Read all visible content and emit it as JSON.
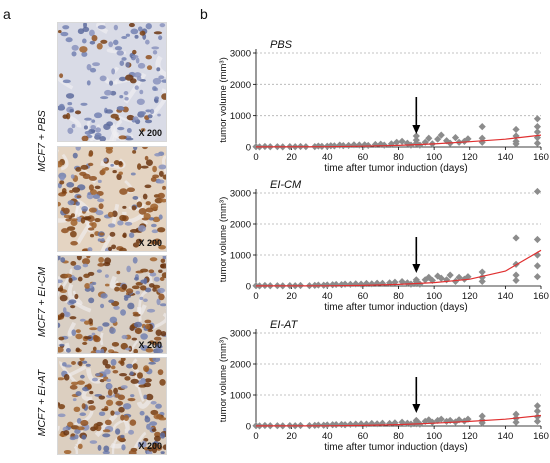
{
  "panel_a": {
    "letter": "a",
    "rows": [
      {
        "label": "MCF7 + PBS",
        "images": [
          {
            "magnification": "X 200",
            "stain": "pbs-top"
          },
          {
            "magnification": "X 200",
            "stain": "pbs-bottom"
          }
        ]
      },
      {
        "label": "MCF7 + EI-CM",
        "images": [
          {
            "magnification": "X 200",
            "stain": "eicm"
          }
        ]
      },
      {
        "label": "MCF7 + EI-AT",
        "images": [
          {
            "magnification": "X 200",
            "stain": "eiat"
          }
        ]
      }
    ]
  },
  "panel_b": {
    "letter": "b"
  },
  "colors": {
    "points": "#8c8c8c",
    "trend": "#e03030",
    "grid": "#b0b0b0",
    "arrow": "#000000",
    "nuclei_brown": "#8a4a1a",
    "nuclei_blue": "#6a78a8"
  },
  "chart_data": [
    {
      "type": "scatter",
      "title": "PBS",
      "xlabel": "time after tumor induction  (days)",
      "ylabel": "tumor volume  (mm³)",
      "xlim": [
        0,
        160
      ],
      "ylim": [
        0,
        3000
      ],
      "xticks": [
        0,
        20,
        40,
        60,
        80,
        100,
        120,
        140,
        160
      ],
      "yticks": [
        0,
        1000,
        2000,
        3000
      ],
      "grid": "horizontal dashed",
      "arrow_at_x": 90,
      "points": [
        [
          0,
          10
        ],
        [
          2,
          5
        ],
        [
          5,
          15
        ],
        [
          8,
          8
        ],
        [
          12,
          10
        ],
        [
          15,
          5
        ],
        [
          19,
          12
        ],
        [
          22,
          8
        ],
        [
          25,
          15
        ],
        [
          28,
          10
        ],
        [
          33,
          12
        ],
        [
          35,
          30
        ],
        [
          37,
          20
        ],
        [
          40,
          25
        ],
        [
          42,
          40
        ],
        [
          44,
          35
        ],
        [
          47,
          60
        ],
        [
          49,
          45
        ],
        [
          52,
          50
        ],
        [
          55,
          70
        ],
        [
          58,
          65
        ],
        [
          61,
          70
        ],
        [
          63,
          50
        ],
        [
          67,
          80
        ],
        [
          70,
          90
        ],
        [
          72,
          60
        ],
        [
          76,
          100
        ],
        [
          79,
          150
        ],
        [
          82,
          180
        ],
        [
          85,
          120
        ],
        [
          87,
          60
        ],
        [
          90,
          350
        ],
        [
          90,
          220
        ],
        [
          90,
          120
        ],
        [
          92,
          60
        ],
        [
          95,
          150
        ],
        [
          97,
          280
        ],
        [
          99,
          100
        ],
        [
          102,
          250
        ],
        [
          104,
          380
        ],
        [
          107,
          200
        ],
        [
          109,
          120
        ],
        [
          112,
          300
        ],
        [
          114,
          150
        ],
        [
          117,
          180
        ],
        [
          119,
          260
        ],
        [
          127,
          650
        ],
        [
          127,
          280
        ],
        [
          127,
          150
        ],
        [
          146,
          560
        ],
        [
          146,
          350
        ],
        [
          146,
          180
        ],
        [
          146,
          100
        ],
        [
          158,
          900
        ],
        [
          158,
          650
        ],
        [
          158,
          480
        ],
        [
          158,
          300
        ],
        [
          158,
          120
        ]
      ],
      "trend": [
        [
          0,
          2
        ],
        [
          40,
          10
        ],
        [
          60,
          25
        ],
        [
          80,
          50
        ],
        [
          100,
          100
        ],
        [
          120,
          170
        ],
        [
          140,
          250
        ],
        [
          160,
          380
        ]
      ]
    },
    {
      "type": "scatter",
      "title": "EI-CM",
      "xlabel": "time after tumor induction  (days)",
      "ylabel": "tumor volume  (mm³)",
      "xlim": [
        0,
        160
      ],
      "ylim": [
        0,
        3000
      ],
      "xticks": [
        0,
        20,
        40,
        60,
        80,
        100,
        120,
        140,
        160
      ],
      "yticks": [
        0,
        1000,
        2000,
        3000
      ],
      "grid": "horizontal dashed",
      "arrow_at_x": 90,
      "points": [
        [
          0,
          10
        ],
        [
          2,
          5
        ],
        [
          5,
          15
        ],
        [
          8,
          8
        ],
        [
          12,
          10
        ],
        [
          15,
          5
        ],
        [
          19,
          12
        ],
        [
          22,
          8
        ],
        [
          25,
          15
        ],
        [
          30,
          10
        ],
        [
          33,
          20
        ],
        [
          35,
          30
        ],
        [
          38,
          25
        ],
        [
          40,
          35
        ],
        [
          43,
          40
        ],
        [
          45,
          50
        ],
        [
          48,
          45
        ],
        [
          50,
          60
        ],
        [
          53,
          55
        ],
        [
          56,
          70
        ],
        [
          59,
          60
        ],
        [
          62,
          80
        ],
        [
          65,
          70
        ],
        [
          68,
          90
        ],
        [
          71,
          85
        ],
        [
          75,
          100
        ],
        [
          78,
          120
        ],
        [
          82,
          140
        ],
        [
          85,
          100
        ],
        [
          87,
          60
        ],
        [
          90,
          200
        ],
        [
          90,
          150
        ],
        [
          90,
          80
        ],
        [
          92,
          60
        ],
        [
          95,
          200
        ],
        [
          97,
          280
        ],
        [
          99,
          180
        ],
        [
          102,
          320
        ],
        [
          104,
          250
        ],
        [
          107,
          200
        ],
        [
          109,
          350
        ],
        [
          112,
          150
        ],
        [
          114,
          280
        ],
        [
          117,
          220
        ],
        [
          119,
          300
        ],
        [
          127,
          450
        ],
        [
          127,
          280
        ],
        [
          127,
          150
        ],
        [
          146,
          1550
        ],
        [
          146,
          700
        ],
        [
          146,
          350
        ],
        [
          146,
          180
        ],
        [
          158,
          3050
        ],
        [
          158,
          1500
        ],
        [
          158,
          1000
        ],
        [
          158,
          650
        ],
        [
          158,
          300
        ]
      ],
      "trend": [
        [
          0,
          2
        ],
        [
          40,
          8
        ],
        [
          60,
          20
        ],
        [
          80,
          50
        ],
        [
          100,
          110
        ],
        [
          120,
          220
        ],
        [
          140,
          480
        ],
        [
          160,
          1150
        ]
      ]
    },
    {
      "type": "scatter",
      "title": "EI-AT",
      "xlabel": "time after tumor induction  (days)",
      "ylabel": "tumor volume  (mm³)",
      "xlim": [
        0,
        160
      ],
      "ylim": [
        0,
        3000
      ],
      "xticks": [
        0,
        20,
        40,
        60,
        80,
        100,
        120,
        140,
        160
      ],
      "yticks": [
        0,
        1000,
        2000,
        3000
      ],
      "grid": "horizontal dashed",
      "arrow_at_x": 90,
      "points": [
        [
          0,
          10
        ],
        [
          2,
          5
        ],
        [
          5,
          15
        ],
        [
          8,
          8
        ],
        [
          12,
          10
        ],
        [
          15,
          5
        ],
        [
          19,
          12
        ],
        [
          22,
          8
        ],
        [
          25,
          15
        ],
        [
          30,
          12
        ],
        [
          33,
          20
        ],
        [
          35,
          30
        ],
        [
          38,
          25
        ],
        [
          40,
          35
        ],
        [
          43,
          40
        ],
        [
          45,
          45
        ],
        [
          48,
          50
        ],
        [
          50,
          40
        ],
        [
          53,
          55
        ],
        [
          56,
          60
        ],
        [
          59,
          70
        ],
        [
          62,
          60
        ],
        [
          65,
          80
        ],
        [
          68,
          70
        ],
        [
          71,
          90
        ],
        [
          75,
          80
        ],
        [
          78,
          100
        ],
        [
          82,
          120
        ],
        [
          85,
          90
        ],
        [
          87,
          60
        ],
        [
          90,
          180
        ],
        [
          90,
          130
        ],
        [
          90,
          70
        ],
        [
          92,
          60
        ],
        [
          95,
          150
        ],
        [
          97,
          200
        ],
        [
          99,
          120
        ],
        [
          102,
          180
        ],
        [
          104,
          220
        ],
        [
          107,
          150
        ],
        [
          109,
          180
        ],
        [
          112,
          130
        ],
        [
          114,
          200
        ],
        [
          117,
          160
        ],
        [
          119,
          220
        ],
        [
          127,
          320
        ],
        [
          127,
          180
        ],
        [
          127,
          100
        ],
        [
          146,
          380
        ],
        [
          146,
          250
        ],
        [
          146,
          120
        ],
        [
          158,
          650
        ],
        [
          158,
          480
        ],
        [
          158,
          300
        ],
        [
          158,
          150
        ]
      ],
      "trend": [
        [
          0,
          2
        ],
        [
          40,
          8
        ],
        [
          60,
          20
        ],
        [
          80,
          45
        ],
        [
          100,
          90
        ],
        [
          120,
          150
        ],
        [
          140,
          220
        ],
        [
          160,
          340
        ]
      ]
    }
  ]
}
